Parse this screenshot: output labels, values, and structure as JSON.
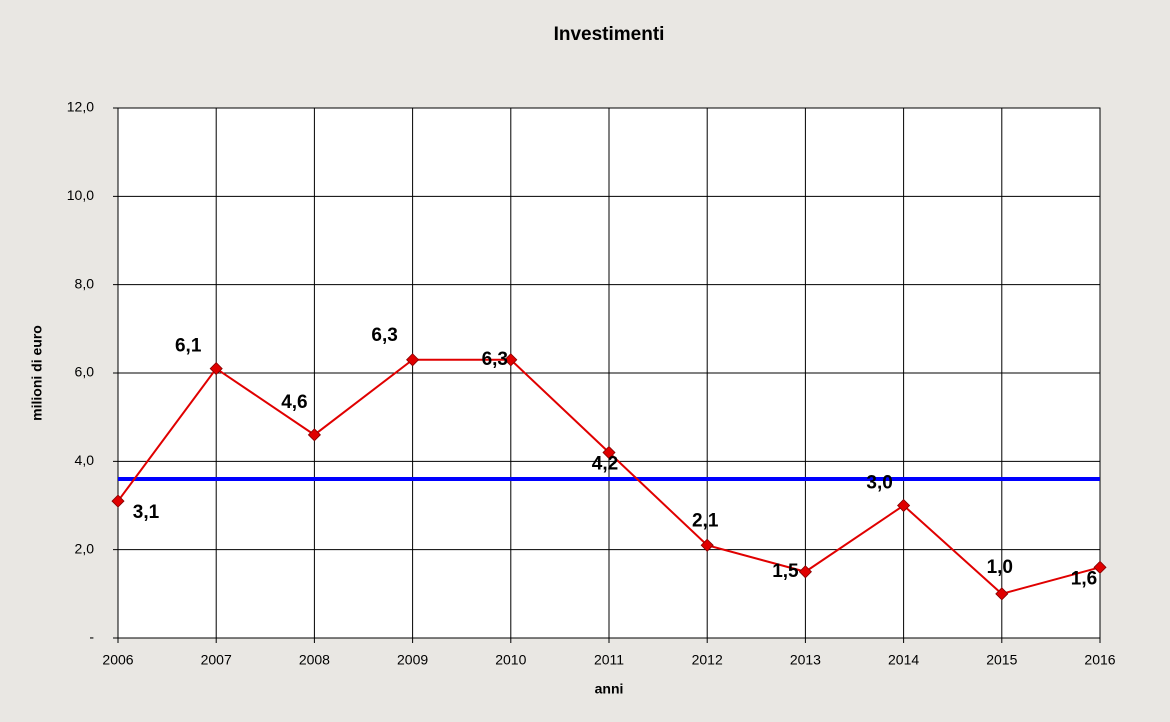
{
  "chart_data": {
    "type": "line",
    "title": "Investimenti",
    "xlabel": "anni",
    "ylabel": "milioni di euro",
    "x": [
      2006,
      2007,
      2008,
      2009,
      2010,
      2011,
      2012,
      2013,
      2014,
      2015,
      2016
    ],
    "series": [
      {
        "color": "#e00000",
        "values": [
          3.1,
          6.1,
          4.6,
          6.3,
          6.3,
          4.2,
          2.1,
          1.5,
          3.0,
          1.0,
          1.6
        ],
        "value_labels": [
          "3,1",
          "6,1",
          "4,6",
          "6,3",
          "6,3",
          "4,2",
          "2,1",
          "1,5",
          "3,0",
          "1,0",
          "1,6"
        ]
      }
    ],
    "reference_line": {
      "value": 3.6,
      "color": "#0000ff"
    },
    "xlim": [
      2006,
      2016
    ],
    "xticks": [
      2006,
      2007,
      2008,
      2009,
      2010,
      2011,
      2012,
      2013,
      2014,
      2015,
      2016
    ],
    "ylim": [
      0,
      12
    ],
    "yticks": [
      {
        "value": 0,
        "label": "-"
      },
      {
        "value": 2,
        "label": "2,0"
      },
      {
        "value": 4,
        "label": "4,0"
      },
      {
        "value": 6,
        "label": "6,0"
      },
      {
        "value": 8,
        "label": "8,0"
      },
      {
        "value": 10,
        "label": "10,0"
      },
      {
        "value": 12,
        "label": "12,0"
      }
    ],
    "grid": true
  }
}
